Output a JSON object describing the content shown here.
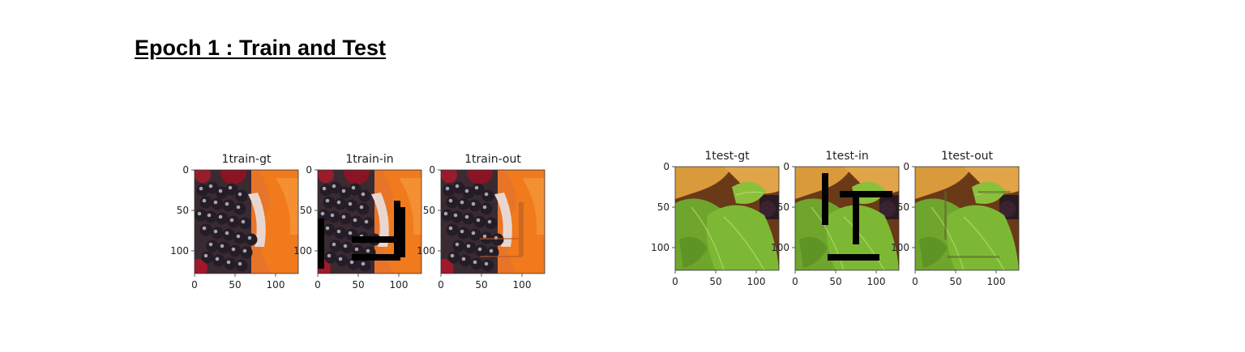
{
  "page": {
    "heading": "Epoch 1 : Train and Test"
  },
  "panels": [
    {
      "id": "train-gt",
      "title": "1train-gt",
      "scene": "berries",
      "overlay": "none"
    },
    {
      "id": "train-in",
      "title": "1train-in",
      "scene": "berries",
      "overlay": "mask"
    },
    {
      "id": "train-out",
      "title": "1train-out",
      "scene": "berries",
      "overlay": "faint"
    },
    {
      "id": "test-gt",
      "title": "1test-gt",
      "scene": "leaves",
      "overlay": "none"
    },
    {
      "id": "test-in",
      "title": "1test-in",
      "scene": "leaves",
      "overlay": "mask"
    },
    {
      "id": "test-out",
      "title": "1test-out",
      "scene": "leaves",
      "overlay": "faint"
    }
  ],
  "axes": {
    "x_ticks": [
      "0",
      "50",
      "100"
    ],
    "y_ticks": [
      "0",
      "50",
      "100"
    ],
    "range": [
      0,
      128
    ]
  },
  "colors": {
    "tick": "#222222",
    "mask": "#000000"
  }
}
